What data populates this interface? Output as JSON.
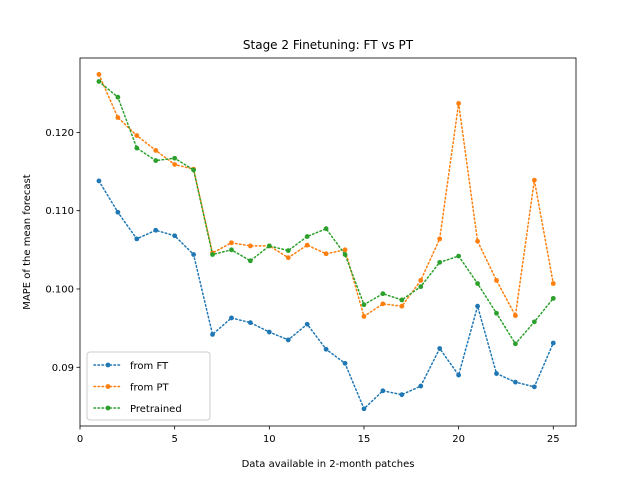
{
  "chart_data": {
    "type": "line",
    "title": "Stage 2 Finetuning: FT vs PT",
    "xlabel": "Data available in 2-month patches",
    "ylabel": "MAPE of the mean forecast",
    "xlim": [
      0.0,
      26.2
    ],
    "ylim": [
      0.0825,
      0.1295
    ],
    "xticks": [
      0,
      5,
      10,
      15,
      20,
      25
    ],
    "yticks": [
      0.09,
      0.1,
      0.11,
      0.12
    ],
    "ytick_labels": [
      "0.09",
      "0.100",
      "0.110",
      "0.120"
    ],
    "legend_position": "lower-left",
    "grid": false,
    "x": [
      1,
      2,
      3,
      4,
      5,
      6,
      7,
      8,
      9,
      10,
      11,
      12,
      13,
      14,
      15,
      16,
      17,
      18,
      19,
      20,
      21,
      22,
      23,
      24,
      25
    ],
    "series": [
      {
        "name": "from FT",
        "color": "#1f77b4",
        "values": [
          0.1138,
          0.1098,
          0.1064,
          0.1075,
          0.1068,
          0.1044,
          0.0942,
          0.0963,
          0.0957,
          0.0945,
          0.0935,
          0.0955,
          0.0923,
          0.0905,
          0.0847,
          0.087,
          0.0865,
          0.0876,
          0.0924,
          0.089,
          0.0978,
          0.0892,
          0.0881,
          0.0875,
          0.0931
        ]
      },
      {
        "name": "from PT",
        "color": "#ff7f0e",
        "values": [
          0.1274,
          0.1219,
          0.1196,
          0.1177,
          0.1159,
          0.1153,
          0.1046,
          0.1059,
          0.1055,
          0.1055,
          0.104,
          0.1056,
          0.1045,
          0.105,
          0.0965,
          0.0981,
          0.0978,
          0.1011,
          0.1064,
          0.1237,
          0.1061,
          0.1011,
          0.0966,
          0.1139,
          0.1007
        ]
      },
      {
        "name": "Pretrained",
        "color": "#2ca02c",
        "values": [
          0.1265,
          0.1245,
          0.118,
          0.1164,
          0.1167,
          0.1152,
          0.1044,
          0.105,
          0.1036,
          0.1055,
          0.1049,
          0.1067,
          0.1077,
          0.1044,
          0.098,
          0.0994,
          0.0986,
          0.1003,
          0.1034,
          0.1042,
          0.1007,
          0.0969,
          0.093,
          0.0958,
          0.0988
        ]
      }
    ]
  }
}
